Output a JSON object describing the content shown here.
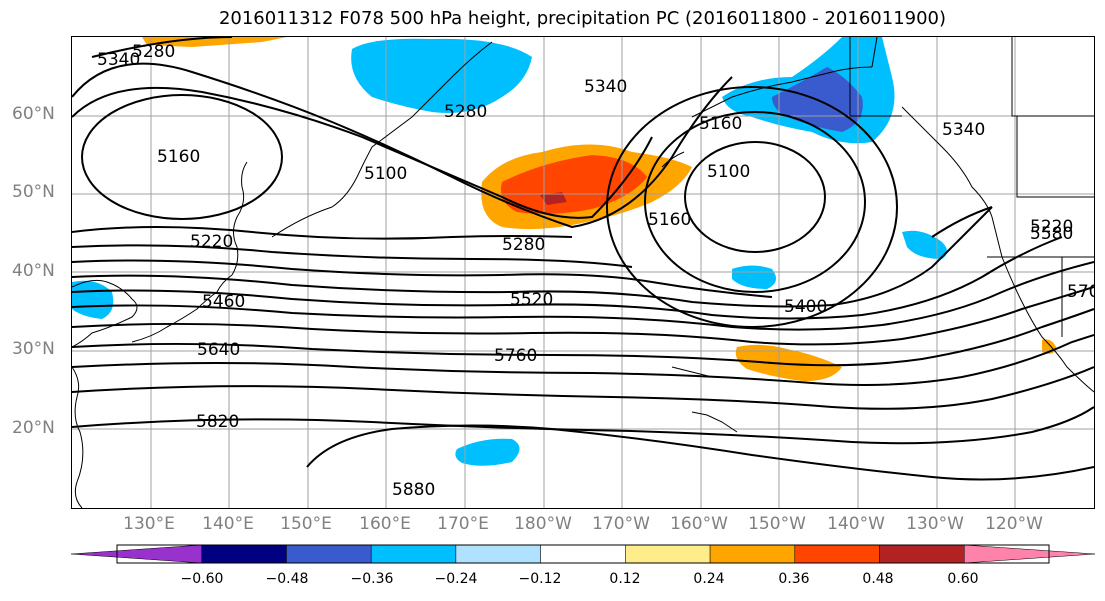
{
  "title": "2016011312 F078 500 hPa height, precipitation PC (2016011800 - 2016011900)",
  "lat_labels": [
    "60°N",
    "50°N",
    "40°N",
    "30°N",
    "20°N"
  ],
  "lon_labels": [
    "130°E",
    "140°E",
    "150°E",
    "160°E",
    "170°E",
    "180°W",
    "170°W",
    "160°W",
    "150°W",
    "140°W",
    "130°W",
    "120°W"
  ],
  "contour_labels": [
    "5340",
    "5280",
    "5340",
    "5280",
    "5160",
    "5100",
    "5160",
    "5100",
    "5160",
    "5220",
    "5280",
    "5340",
    "5220",
    "5460",
    "5520",
    "5580",
    "5400",
    "570",
    "5640",
    "5760",
    "5820",
    "5880"
  ],
  "colorbar": {
    "colors": [
      "#9932cc",
      "#000080",
      "#3a5bcd",
      "#00bfff",
      "#b0e2ff",
      "#ffffff",
      "#ffec8b",
      "#ffa500",
      "#ff4500",
      "#b22222",
      "#ff82ab"
    ],
    "ticks": [
      "−0.60",
      "−0.48",
      "−0.36",
      "−0.24",
      "−0.12",
      "0.12",
      "0.24",
      "0.36",
      "0.48",
      "0.60"
    ]
  }
}
